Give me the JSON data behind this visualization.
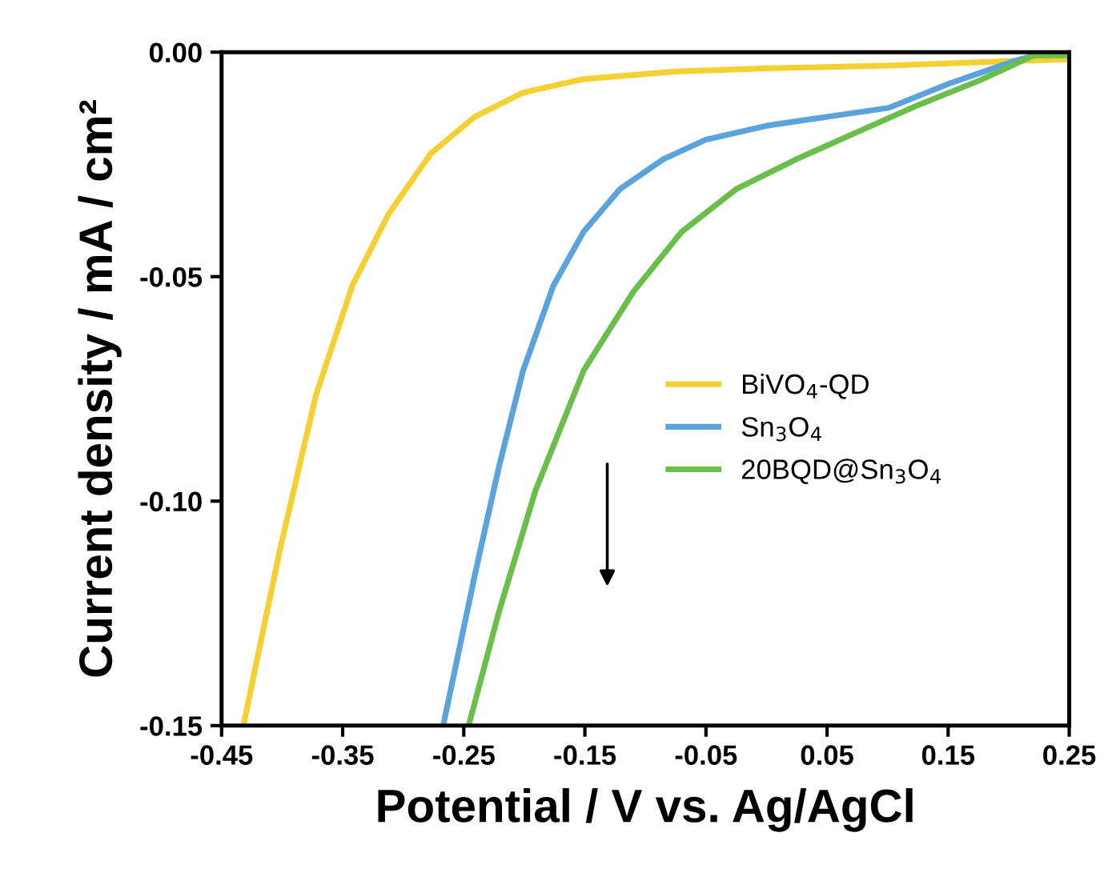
{
  "chart_data": {
    "type": "line",
    "xlabel": "Potential / V vs. Ag/AgCl",
    "ylabel": "Current density / mA / cm²",
    "xlim": [
      -0.45,
      0.25
    ],
    "ylim": [
      -0.15,
      0.0
    ],
    "xticks": [
      -0.45,
      -0.35,
      -0.25,
      -0.15,
      -0.05,
      0.05,
      0.15,
      0.25
    ],
    "yticks": [
      {
        "value": 0.0,
        "label": "0.00"
      },
      {
        "value": -0.05,
        "label": "-0.05"
      },
      {
        "value": -0.1,
        "label": "-0.10"
      },
      {
        "value": -0.15,
        "label": "-0.15"
      }
    ],
    "grid": false,
    "legend": "center right",
    "marker": "none",
    "line_style": "solid",
    "series": [
      {
        "name": "BiVO$_{4}$-QD",
        "color": "#f5d033",
        "x": [
          -0.432,
          -0.402,
          -0.372,
          -0.342,
          -0.312,
          -0.277,
          -0.241,
          -0.201,
          -0.151,
          -0.075,
          0.0,
          0.1,
          0.201,
          0.25
        ],
        "values": [
          -0.15,
          -0.111,
          -0.0763,
          -0.052,
          -0.036,
          -0.0225,
          -0.0144,
          -0.009,
          -0.006,
          -0.0043,
          -0.0036,
          -0.003,
          -0.002,
          -0.0016
        ]
      },
      {
        "name": "Sn$_{3}$O$_{4}$",
        "color": "#5ba3dc",
        "x": [
          -0.267,
          -0.241,
          -0.221,
          -0.201,
          -0.176,
          -0.151,
          -0.121,
          -0.085,
          -0.05,
          0.0,
          0.05,
          0.101,
          0.151,
          0.201,
          0.221,
          0.25
        ],
        "values": [
          -0.15,
          -0.1166,
          -0.0924,
          -0.0709,
          -0.052,
          -0.04,
          -0.0305,
          -0.0238,
          -0.0195,
          -0.0164,
          -0.0144,
          -0.0124,
          -0.007,
          -0.0023,
          -0.0007,
          -0.0003
        ]
      },
      {
        "name": "20BQD@Sn$_{3}$O$_{4}$",
        "color": "#6abf4b",
        "x": [
          -0.246,
          -0.221,
          -0.191,
          -0.151,
          -0.11,
          -0.07,
          -0.025,
          0.025,
          0.075,
          0.126,
          0.176,
          0.221,
          0.25
        ],
        "values": [
          -0.15,
          -0.1247,
          -0.0978,
          -0.0709,
          -0.0534,
          -0.04,
          -0.0305,
          -0.0238,
          -0.0178,
          -0.0117,
          -0.0063,
          -0.0007,
          -0.0007
        ]
      }
    ]
  }
}
